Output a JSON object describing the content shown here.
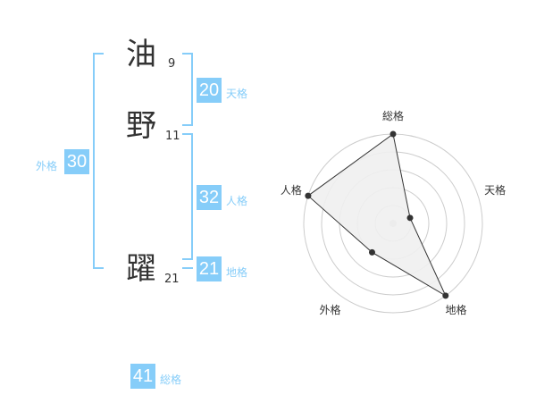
{
  "name": {
    "chars": [
      {
        "char": "油",
        "strokes": "9"
      },
      {
        "char": "野",
        "strokes": "11"
      },
      {
        "char": "躍",
        "strokes": "21"
      }
    ]
  },
  "fortunes": {
    "tenkaku": {
      "label": "天格",
      "value": "20"
    },
    "jinkaku": {
      "label": "人格",
      "value": "32"
    },
    "chikaku": {
      "label": "地格",
      "value": "21"
    },
    "gaikaku": {
      "label": "外格",
      "value": "30"
    },
    "soukaku": {
      "label": "総格",
      "value": "41"
    }
  },
  "colors": {
    "accent": "#86cdf9",
    "text": "#333333",
    "radar_fill": "#f0f0f0",
    "grid": "#cccccc"
  },
  "chart_data": {
    "type": "radar",
    "axes": [
      "総格",
      "天格",
      "地格",
      "外格",
      "人格"
    ],
    "values": [
      5,
      1,
      5,
      2,
      5
    ],
    "range": [
      0,
      5
    ],
    "rings": 5
  }
}
